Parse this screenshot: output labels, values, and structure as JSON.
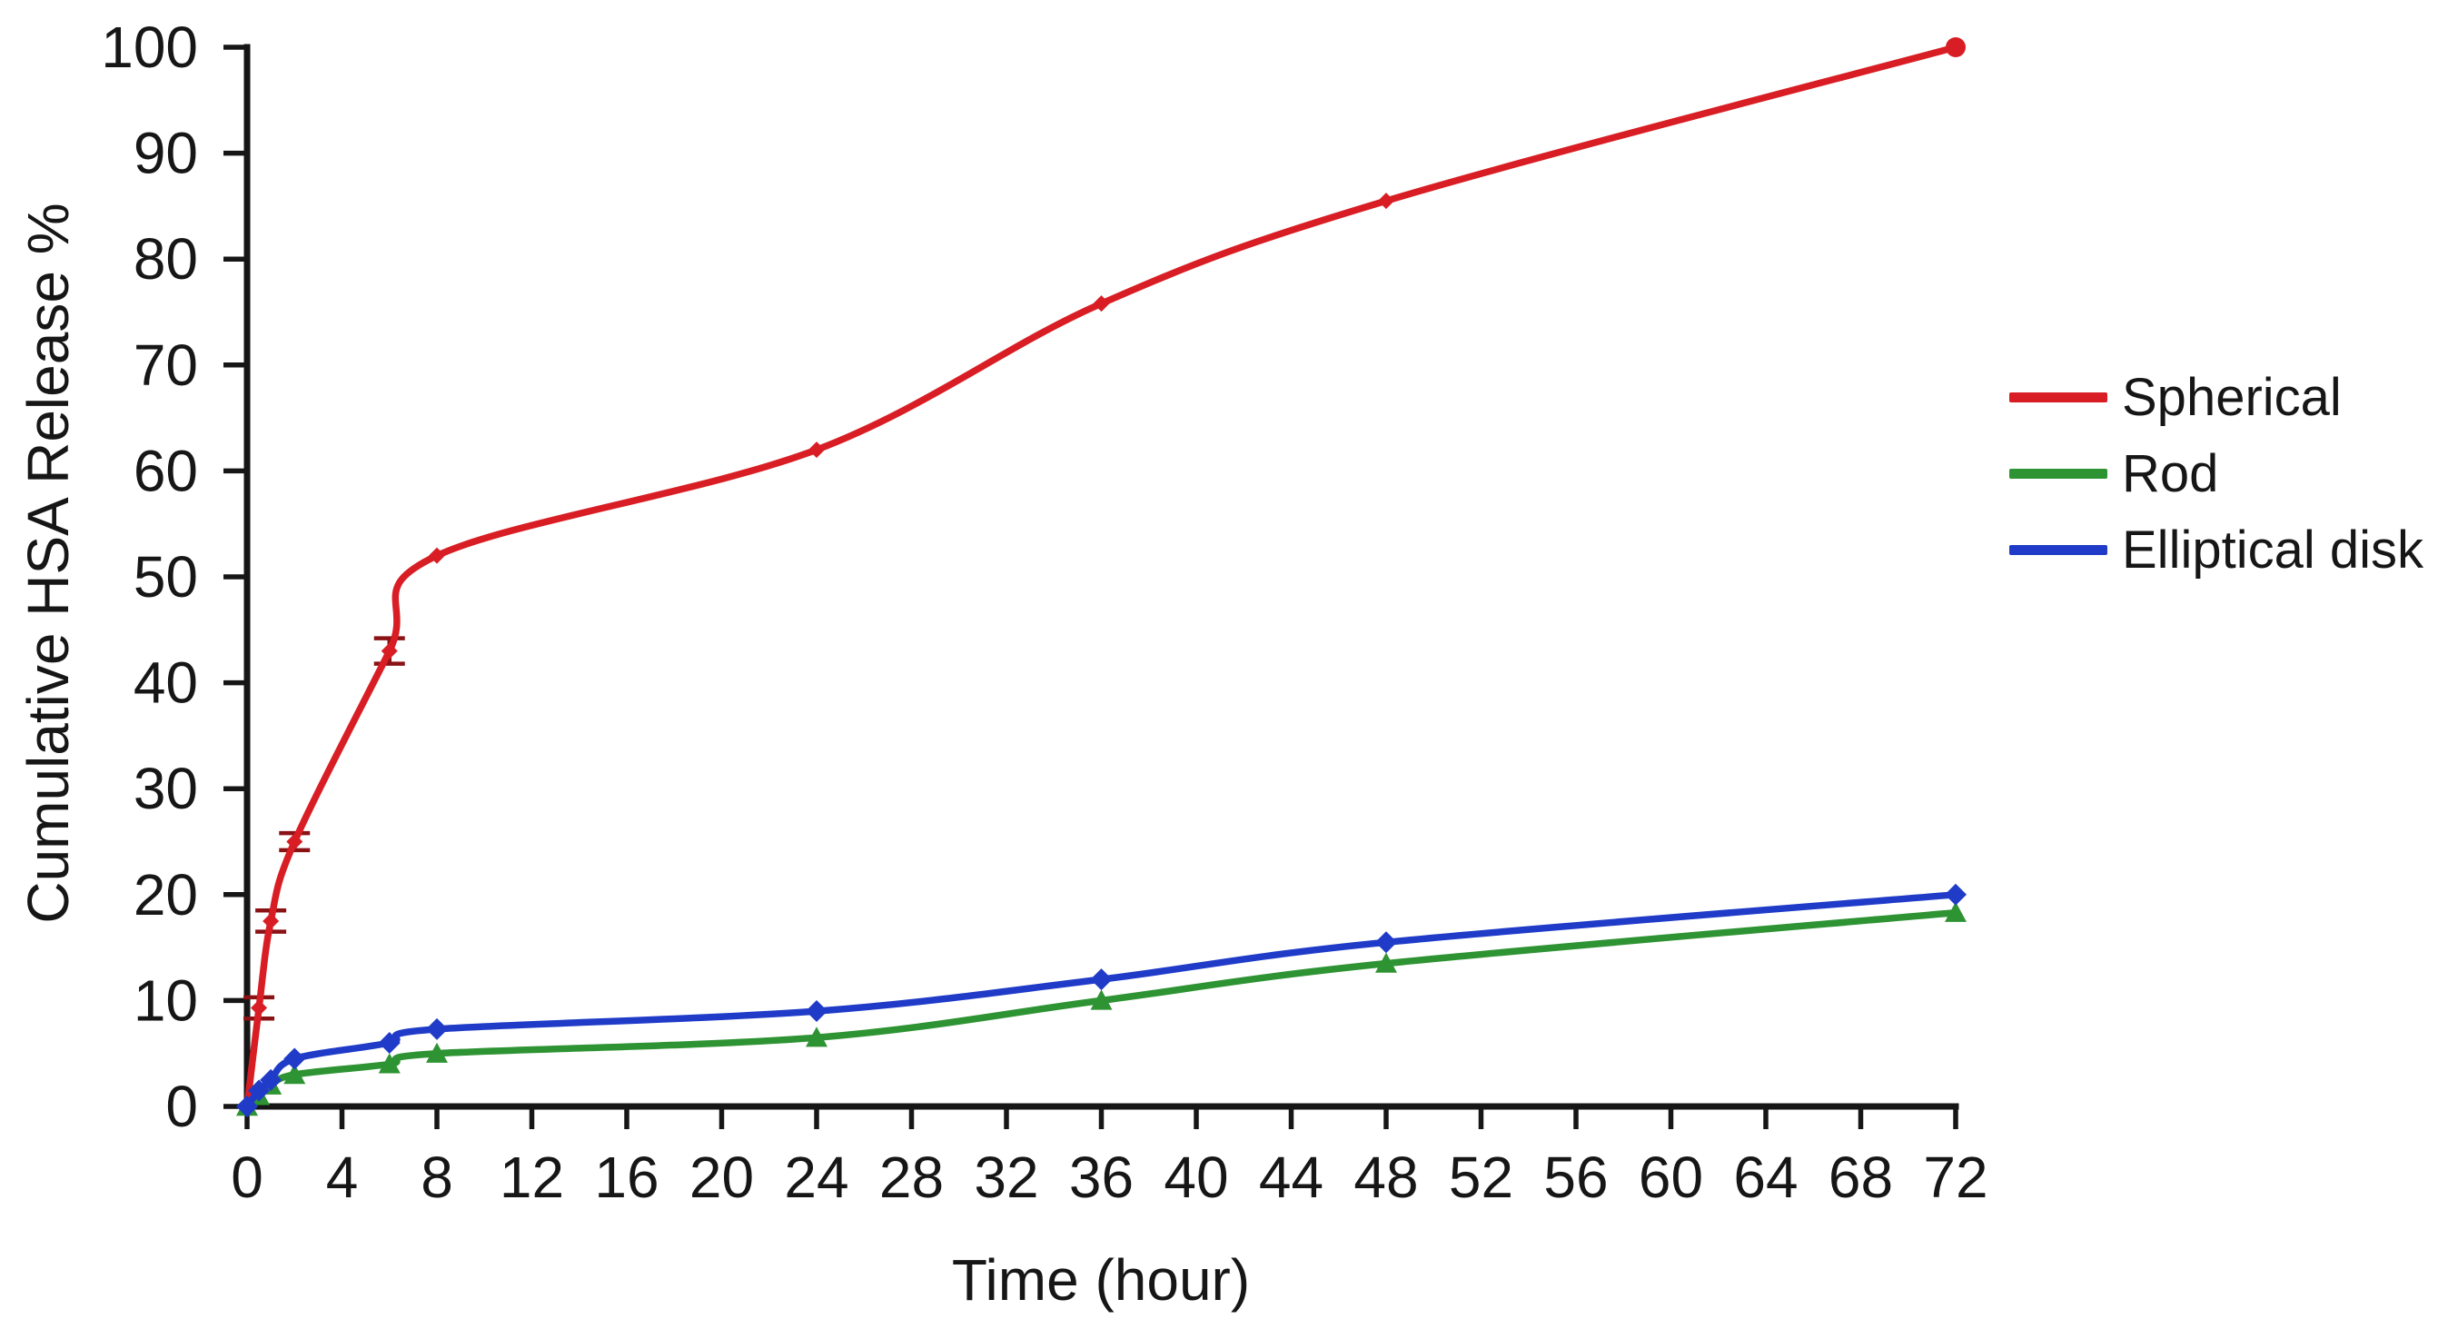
{
  "figure": {
    "background": "#ffffff",
    "text_color": "#161616",
    "axis_color": "#161616"
  },
  "chart_data": {
    "type": "line",
    "title": "",
    "xlabel": "Time (hour)",
    "ylabel": "Cumulative HSA Release %",
    "xlim": [
      0,
      72
    ],
    "ylim": [
      0,
      100
    ],
    "x_ticks": [
      0,
      4,
      8,
      12,
      16,
      20,
      24,
      28,
      32,
      36,
      40,
      44,
      48,
      52,
      56,
      60,
      64,
      68,
      72
    ],
    "y_ticks": [
      0,
      10,
      20,
      30,
      40,
      50,
      60,
      70,
      80,
      90,
      100
    ],
    "grid": false,
    "legend_position": "right",
    "x": [
      0,
      0.5,
      1,
      2,
      6,
      8,
      24,
      36,
      48,
      72
    ],
    "series": [
      {
        "name": "Spherical",
        "color": "#d81e24",
        "error_color": "#8a1215",
        "marker": "diamond-small",
        "values": [
          0,
          9.3,
          17.5,
          25,
          43,
          52,
          62,
          75.8,
          85.5,
          100
        ],
        "error": [
          0,
          1,
          1,
          0.8,
          1.2,
          0,
          0,
          0,
          0,
          0
        ]
      },
      {
        "name": "Rod",
        "color": "#2e9333",
        "marker": "triangle",
        "values": [
          0,
          1,
          2,
          3,
          4,
          5,
          6.5,
          10,
          13.5,
          18.3
        ]
      },
      {
        "name": "Elliptical disk",
        "color": "#1f3bc8",
        "marker": "diamond",
        "values": [
          0,
          1.5,
          2.5,
          4.5,
          6,
          7.3,
          9,
          12,
          15.5,
          20
        ]
      }
    ]
  }
}
